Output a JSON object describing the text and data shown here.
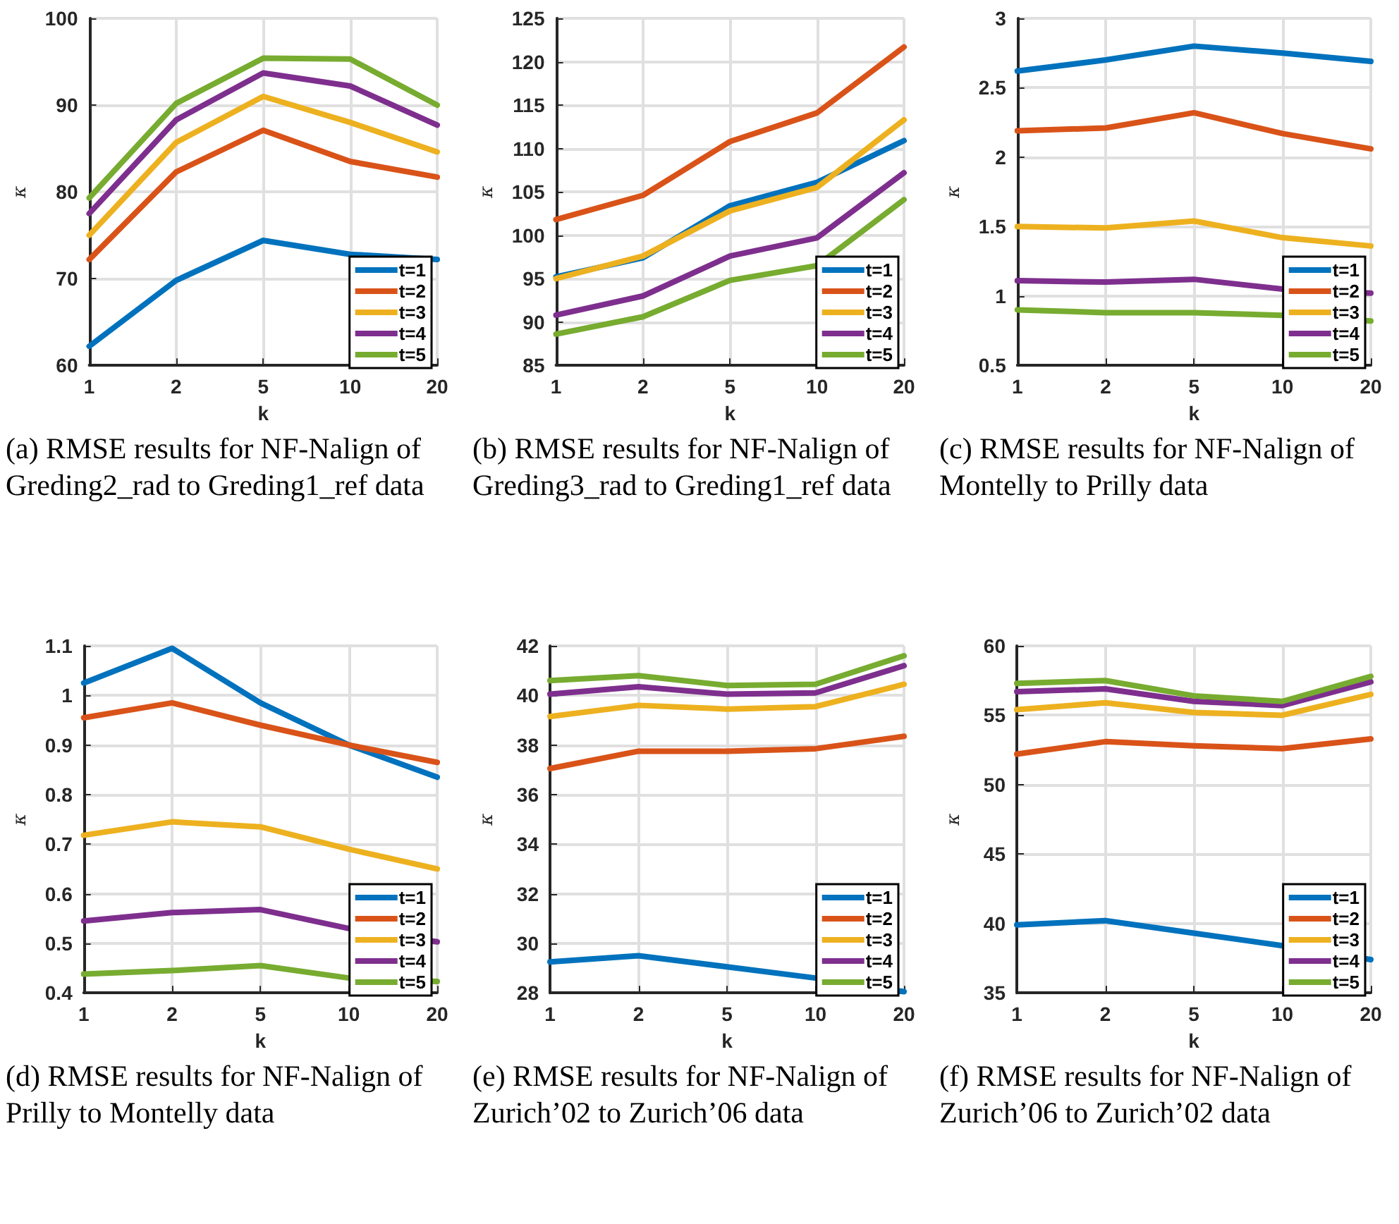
{
  "chart_data": [
    {
      "type": "line",
      "xlabel": "k",
      "ylabel": "κ",
      "categories": [
        "1",
        "2",
        "5",
        "10",
        "20"
      ],
      "ylim": [
        60,
        100
      ],
      "yticks": [
        60,
        70,
        80,
        90,
        100
      ],
      "grid": true,
      "legend": "bottom right",
      "annotations": [
        "(a) RMSE results for NF-Nalign of Greding2_rad to Greding1_ref data"
      ],
      "series": [
        {
          "name": "t=1",
          "color": "#0072bd",
          "values": [
            62.2,
            69.8,
            74.4,
            72.8,
            72.2
          ]
        },
        {
          "name": "t=2",
          "color": "#d95319",
          "values": [
            72.2,
            82.3,
            87.1,
            83.5,
            81.7
          ]
        },
        {
          "name": "t=3",
          "color": "#edb120",
          "values": [
            75.0,
            85.7,
            91.0,
            88.0,
            84.6
          ]
        },
        {
          "name": "t=4",
          "color": "#7e2f8e",
          "values": [
            77.5,
            88.3,
            93.7,
            92.2,
            87.7
          ]
        },
        {
          "name": "t=5",
          "color": "#77ac30",
          "values": [
            79.3,
            90.2,
            95.4,
            95.3,
            90.0
          ]
        }
      ]
    },
    {
      "type": "line",
      "xlabel": "k",
      "ylabel": "κ",
      "categories": [
        "1",
        "2",
        "5",
        "10",
        "20"
      ],
      "ylim": [
        85,
        125
      ],
      "yticks": [
        85,
        90,
        95,
        100,
        105,
        110,
        115,
        120,
        125
      ],
      "grid": true,
      "legend": "bottom right",
      "annotations": [
        "(b) RMSE results for NF-Nalign of Greding3_rad to Greding1_ref data"
      ],
      "series": [
        {
          "name": "t=1",
          "color": "#0072bd",
          "values": [
            95.2,
            97.4,
            103.4,
            106.1,
            110.9
          ]
        },
        {
          "name": "t=2",
          "color": "#d95319",
          "values": [
            101.8,
            104.6,
            110.8,
            114.1,
            121.7
          ]
        },
        {
          "name": "t=3",
          "color": "#edb120",
          "values": [
            95.0,
            97.6,
            102.8,
            105.5,
            113.3
          ]
        },
        {
          "name": "t=4",
          "color": "#7e2f8e",
          "values": [
            90.8,
            93.0,
            97.6,
            99.7,
            107.2
          ]
        },
        {
          "name": "t=5",
          "color": "#77ac30",
          "values": [
            88.6,
            90.6,
            94.8,
            96.5,
            104.1
          ]
        }
      ]
    },
    {
      "type": "line",
      "xlabel": "k",
      "ylabel": "κ",
      "categories": [
        "1",
        "2",
        "5",
        "10",
        "20"
      ],
      "ylim": [
        0.5,
        3
      ],
      "yticks": [
        0.5,
        1,
        1.5,
        2,
        2.5,
        3
      ],
      "grid": true,
      "legend": "bottom right",
      "annotations": [
        "(c) RMSE results for NF-Nalign of Montelly to Prilly data"
      ],
      "series": [
        {
          "name": "t=1",
          "color": "#0072bd",
          "values": [
            2.62,
            2.7,
            2.8,
            2.75,
            2.69
          ]
        },
        {
          "name": "t=2",
          "color": "#d95319",
          "values": [
            2.19,
            2.21,
            2.32,
            2.17,
            2.06
          ]
        },
        {
          "name": "t=3",
          "color": "#edb120",
          "values": [
            1.5,
            1.49,
            1.54,
            1.42,
            1.36
          ]
        },
        {
          "name": "t=4",
          "color": "#7e2f8e",
          "values": [
            1.11,
            1.1,
            1.12,
            1.05,
            1.02
          ]
        },
        {
          "name": "t=5",
          "color": "#77ac30",
          "values": [
            0.9,
            0.88,
            0.88,
            0.86,
            0.82
          ]
        }
      ]
    },
    {
      "type": "line",
      "xlabel": "k",
      "ylabel": "κ",
      "categories": [
        "1",
        "2",
        "5",
        "10",
        "20"
      ],
      "ylim": [
        0.4,
        1.1
      ],
      "yticks": [
        0.4,
        0.5,
        0.6,
        0.7,
        0.8,
        0.9,
        1,
        1.1
      ],
      "grid": true,
      "legend": "bottom right",
      "annotations": [
        "(d) RMSE results for NF-Nalign of Prilly to Montelly data"
      ],
      "series": [
        {
          "name": "t=1",
          "color": "#0072bd",
          "values": [
            1.025,
            1.095,
            0.985,
            0.9,
            0.835
          ]
        },
        {
          "name": "t=2",
          "color": "#d95319",
          "values": [
            0.955,
            0.985,
            0.94,
            0.9,
            0.865
          ]
        },
        {
          "name": "t=3",
          "color": "#edb120",
          "values": [
            0.718,
            0.745,
            0.735,
            0.69,
            0.65
          ]
        },
        {
          "name": "t=4",
          "color": "#7e2f8e",
          "values": [
            0.545,
            0.562,
            0.568,
            0.53,
            0.503
          ]
        },
        {
          "name": "t=5",
          "color": "#77ac30",
          "values": [
            0.438,
            0.445,
            0.455,
            0.43,
            0.423
          ]
        }
      ]
    },
    {
      "type": "line",
      "xlabel": "k",
      "ylabel": "κ",
      "categories": [
        "1",
        "2",
        "5",
        "10",
        "20"
      ],
      "ylim": [
        28,
        42
      ],
      "yticks": [
        28,
        30,
        32,
        34,
        36,
        38,
        40,
        42
      ],
      "grid": true,
      "legend": "bottom right",
      "annotations": [
        "(e) RMSE results for NF-Nalign of Zurich’02 to Zurich’06 data"
      ],
      "series": [
        {
          "name": "t=1",
          "color": "#0072bd",
          "values": [
            29.25,
            29.5,
            29.05,
            28.6,
            28.05
          ]
        },
        {
          "name": "t=2",
          "color": "#d95319",
          "values": [
            37.05,
            37.75,
            37.75,
            37.85,
            38.35
          ]
        },
        {
          "name": "t=3",
          "color": "#edb120",
          "values": [
            39.15,
            39.6,
            39.45,
            39.55,
            40.45
          ]
        },
        {
          "name": "t=4",
          "color": "#7e2f8e",
          "values": [
            40.05,
            40.35,
            40.05,
            40.1,
            41.2
          ]
        },
        {
          "name": "t=5",
          "color": "#77ac30",
          "values": [
            40.6,
            40.8,
            40.4,
            40.45,
            41.6
          ]
        }
      ]
    },
    {
      "type": "line",
      "xlabel": "k",
      "ylabel": "κ",
      "categories": [
        "1",
        "2",
        "5",
        "10",
        "20"
      ],
      "ylim": [
        35,
        60
      ],
      "yticks": [
        35,
        40,
        45,
        50,
        55,
        60
      ],
      "grid": true,
      "legend": "bottom right",
      "annotations": [
        "(f) RMSE results for NF-Nalign of Zurich’06 to Zurich’02 data"
      ],
      "series": [
        {
          "name": "t=1",
          "color": "#0072bd",
          "values": [
            39.9,
            40.2,
            39.3,
            38.4,
            37.4
          ]
        },
        {
          "name": "t=2",
          "color": "#d95319",
          "values": [
            52.2,
            53.1,
            52.8,
            52.6,
            53.3
          ]
        },
        {
          "name": "t=3",
          "color": "#edb120",
          "values": [
            55.4,
            55.9,
            55.2,
            55.0,
            56.5
          ]
        },
        {
          "name": "t=4",
          "color": "#7e2f8e",
          "values": [
            56.7,
            56.9,
            56.0,
            55.7,
            57.4
          ]
        },
        {
          "name": "t=5",
          "color": "#77ac30",
          "values": [
            57.3,
            57.5,
            56.4,
            56.0,
            57.8
          ]
        }
      ]
    }
  ]
}
